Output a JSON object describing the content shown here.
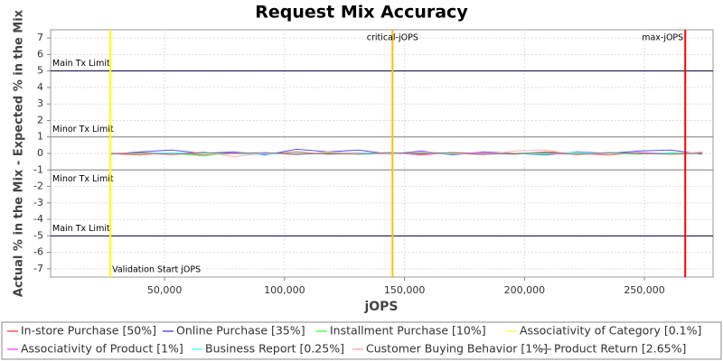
{
  "chart_data": {
    "type": "line",
    "title": "Request Mix Accuracy",
    "xlabel": "jOPS",
    "ylabel": "Actual % in the Mix - Expected % in the Mix",
    "xlim": [
      2500,
      278600
    ],
    "ylim": [
      -7.5,
      7.5
    ],
    "xticks": [
      {
        "value": 50000,
        "label": "50,000"
      },
      {
        "value": 100000,
        "label": "100,000"
      },
      {
        "value": 150000,
        "label": "150,000"
      },
      {
        "value": 200000,
        "label": "200,000"
      },
      {
        "value": 250000,
        "label": "250,000"
      }
    ],
    "yticks": [
      -7,
      -6,
      -5,
      -4,
      -3,
      -2,
      -1,
      0,
      1,
      2,
      3,
      4,
      5,
      6,
      7
    ],
    "grid": true,
    "x": [
      27000,
      40000,
      53000,
      66000,
      79000,
      92000,
      105000,
      118000,
      131000,
      144000,
      157000,
      170000,
      183000,
      196000,
      209000,
      222000,
      235000,
      248000,
      261000,
      274000
    ],
    "series": [
      {
        "name": "In-store Purchase [50%]",
        "color": "#ff5555",
        "values": [
          0.0,
          -0.1,
          0.05,
          -0.1,
          0.0,
          -0.05,
          0.1,
          -0.05,
          0.0,
          0.05,
          -0.1,
          0.05,
          0.0,
          -0.05,
          0.1,
          0.0,
          -0.1,
          0.05,
          0.0,
          0.05
        ]
      },
      {
        "name": "Online Purchase [35%]",
        "color": "#5555ff",
        "values": [
          -0.05,
          0.1,
          0.2,
          0.0,
          0.1,
          -0.1,
          0.25,
          0.1,
          0.2,
          -0.05,
          0.15,
          -0.1,
          0.1,
          0.0,
          -0.1,
          0.1,
          0.0,
          0.15,
          0.2,
          -0.05
        ]
      },
      {
        "name": "Installment Purchase [10%]",
        "color": "#55ff55",
        "values": [
          0.05,
          -0.05,
          0.0,
          -0.15,
          0.05,
          0.0,
          -0.05,
          0.05,
          -0.05,
          0.0,
          0.05,
          -0.05,
          0.05,
          0.0,
          -0.05,
          0.05,
          0.0,
          -0.05,
          0.05,
          0.0
        ]
      },
      {
        "name": "Associativity of Category [0.1%]",
        "color": "#ffff55",
        "values": [
          0.0,
          0.0,
          0.0,
          0.0,
          0.0,
          0.0,
          0.0,
          0.0,
          0.0,
          0.0,
          0.0,
          0.0,
          0.0,
          0.0,
          0.0,
          0.0,
          0.0,
          0.0,
          0.0,
          0.0
        ]
      },
      {
        "name": "Associativity of Product [1%]",
        "color": "#ff55ff",
        "values": [
          0.0,
          0.05,
          -0.05,
          0.0,
          0.05,
          0.0,
          -0.05,
          0.0,
          0.05,
          0.0,
          -0.05,
          0.0,
          0.05,
          0.0,
          0.0,
          -0.05,
          0.0,
          0.05,
          0.0,
          0.0
        ]
      },
      {
        "name": "Business Report [0.25%]",
        "color": "#55ffff",
        "values": [
          0.0,
          0.0,
          0.05,
          0.0,
          0.0,
          -0.05,
          0.0,
          0.0,
          0.05,
          0.0,
          0.0,
          0.0,
          -0.05,
          0.0,
          0.0,
          0.05,
          0.0,
          0.0,
          0.0,
          0.0
        ]
      },
      {
        "name": "Customer Buying Behavior [1%]",
        "color": "#ffafaf",
        "values": [
          0.05,
          0.0,
          -0.1,
          0.1,
          -0.2,
          0.05,
          -0.1,
          0.1,
          0.0,
          -0.05,
          0.1,
          0.0,
          -0.1,
          0.15,
          0.2,
          -0.1,
          0.05,
          0.0,
          -0.05,
          0.1
        ]
      },
      {
        "name": "Product Return [2.65%]",
        "color": "#808080",
        "values": [
          -0.05,
          0.05,
          -0.05,
          0.05,
          0.0,
          0.05,
          -0.05,
          0.0,
          -0.05,
          0.05,
          0.0,
          0.05,
          -0.05,
          0.0,
          0.05,
          -0.05,
          0.05,
          0.0,
          -0.05,
          0.0
        ]
      }
    ],
    "limits": [
      {
        "label": "Main Tx Limit",
        "value": 5,
        "color": "#000040",
        "label_position": "above"
      },
      {
        "label": "Minor Tx Limit",
        "value": 1,
        "color": "#808080",
        "label_position": "above"
      },
      {
        "label": "Minor Tx Limit",
        "value": -1,
        "color": "#808080",
        "label_position": "below"
      },
      {
        "label": "Main Tx Limit",
        "value": -5,
        "color": "#000040",
        "label_position": "above"
      }
    ],
    "markers": [
      {
        "label": "Validation Start jOPS",
        "value": 27400,
        "color": "#ffff00",
        "label_position": "bottom"
      },
      {
        "label": "critical-jOPS",
        "value": 145000,
        "color": "#ffc000",
        "label_position": "top"
      },
      {
        "label": "max-jOPS",
        "value": 267000,
        "color": "#ff0000",
        "label_position": "top-left"
      }
    ],
    "legend": "bottom"
  }
}
